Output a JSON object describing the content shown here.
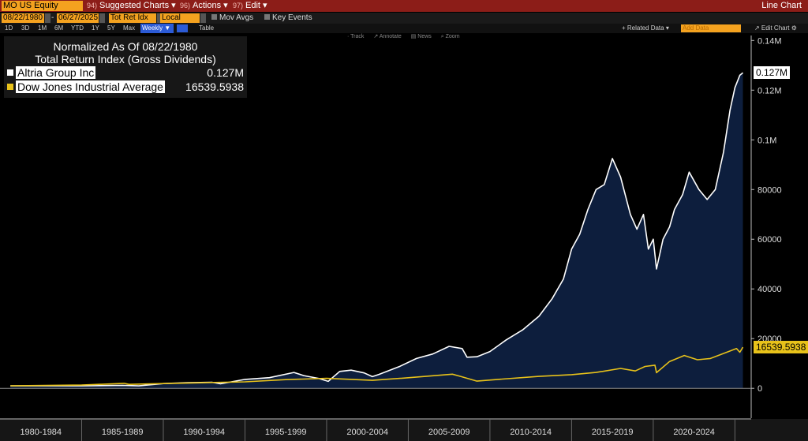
{
  "toolbar": {
    "ticker": "MO US Equity",
    "menus": [
      {
        "num": "94)",
        "label": "Suggested Charts ▾"
      },
      {
        "num": "96)",
        "label": "Actions ▾"
      },
      {
        "num": "97)",
        "label": "Edit ▾"
      }
    ],
    "right_title": "Line Chart"
  },
  "controls": {
    "start_date": "08/22/1980",
    "end_date": "06/27/2025",
    "field": "Tot Ret Idx G",
    "currency": "Local CCY",
    "mov_avgs": "Mov Avgs",
    "key_events": "Key Events"
  },
  "periods": [
    "1D",
    "3D",
    "1M",
    "6M",
    "YTD",
    "1Y",
    "5Y",
    "Max"
  ],
  "frequency": "Weekly ▼",
  "table_label": "Table",
  "related_data": "+ Related Data ▾",
  "add_data_placeholder": "Add Data",
  "edit_chart": "↗ Edit Chart ⚙",
  "chart_tools": [
    "· Track",
    "↗ Annotate",
    "▤ News",
    "⌕ Zoom"
  ],
  "legend": {
    "title1": "Normalized As Of 08/22/1980",
    "title2": "Total Return Index (Gross Dividends)",
    "rows": [
      {
        "name": "Altria Group Inc",
        "value": "0.127M",
        "color": "#ffffff"
      },
      {
        "name": "Dow Jones Industrial Average",
        "value": "16539.5938",
        "color": "#e8c21a"
      }
    ]
  },
  "chart_data": {
    "type": "line",
    "title": "",
    "xlabel": "",
    "ylabel": "",
    "x_tick_labels": [
      "1980-1984",
      "1985-1989",
      "1990-1994",
      "1995-1999",
      "2000-2004",
      "2005-2009",
      "2010-2014",
      "2015-2019",
      "2020-2024"
    ],
    "y_tick_labels": [
      "0",
      "20000",
      "40000",
      "60000",
      "80000",
      "0.1M",
      "0.12M",
      "0.14M"
    ],
    "y_ticks": [
      0,
      20000,
      40000,
      60000,
      80000,
      100000,
      120000,
      140000
    ],
    "ylim": [
      -12000,
      142000
    ],
    "xlim": [
      1980.0,
      2025.9
    ],
    "grid": false,
    "series": [
      {
        "name": "Altria Group Inc",
        "color": "#ffffff",
        "area_fill": "#0d1e3d",
        "last_value_label": "0.127M",
        "x": [
          1980.64,
          1985.0,
          1987.5,
          1988.5,
          1990.0,
          1991.5,
          1993.0,
          1993.5,
          1995.0,
          1996.5,
          1998.0,
          1998.6,
          1999.5,
          2000.1,
          2000.8,
          2001.5,
          2002.3,
          2002.8,
          2003.2,
          2004.5,
          2005.5,
          2006.5,
          2007.5,
          2008.3,
          2008.6,
          2009.2,
          2010.0,
          2011.0,
          2012.0,
          2013.0,
          2013.8,
          2014.5,
          2015.0,
          2015.5,
          2016.0,
          2016.5,
          2017.0,
          2017.5,
          2018.0,
          2018.6,
          2019.0,
          2019.4,
          2019.7,
          2020.0,
          2020.2,
          2020.6,
          2021.0,
          2021.3,
          2021.8,
          2022.2,
          2022.8,
          2023.3,
          2023.8,
          2024.3,
          2024.7,
          2025.0,
          2025.3,
          2025.49
        ],
        "y": [
          1000,
          1000,
          1200,
          1000,
          1900,
          2300,
          2400,
          1800,
          3600,
          4300,
          6400,
          5100,
          4000,
          2800,
          6800,
          7300,
          6200,
          4700,
          5600,
          8900,
          12000,
          13800,
          16900,
          16000,
          12500,
          12700,
          14800,
          19500,
          23500,
          29000,
          36000,
          44000,
          56000,
          62000,
          72000,
          80000,
          82000,
          92500,
          85000,
          70000,
          64000,
          70000,
          56000,
          60000,
          48000,
          60000,
          65000,
          72000,
          78000,
          87000,
          80000,
          76000,
          80000,
          95000,
          112000,
          121000,
          126000,
          127000
        ]
      },
      {
        "name": "Dow Jones Industrial Average",
        "color": "#e8c21a",
        "last_value_label": "16539.5938",
        "x": [
          1980.64,
          1985.0,
          1987.6,
          1987.9,
          1990.0,
          1995.0,
          1997.5,
          2000.0,
          2002.8,
          2004.5,
          2007.7,
          2008.2,
          2009.2,
          2010.5,
          2013.0,
          2015.0,
          2016.5,
          2018.0,
          2018.9,
          2019.5,
          2020.1,
          2020.2,
          2021.0,
          2021.9,
          2022.7,
          2023.5,
          2024.5,
          2025.1,
          2025.3,
          2025.49
        ],
        "y": [
          1000,
          1300,
          2000,
          1600,
          1900,
          2600,
          3500,
          4000,
          3200,
          4000,
          5700,
          4800,
          2900,
          3600,
          4800,
          5500,
          6400,
          8000,
          7000,
          8800,
          9300,
          6300,
          10800,
          13200,
          11500,
          12000,
          14500,
          16000,
          14500,
          16540
        ]
      }
    ]
  }
}
